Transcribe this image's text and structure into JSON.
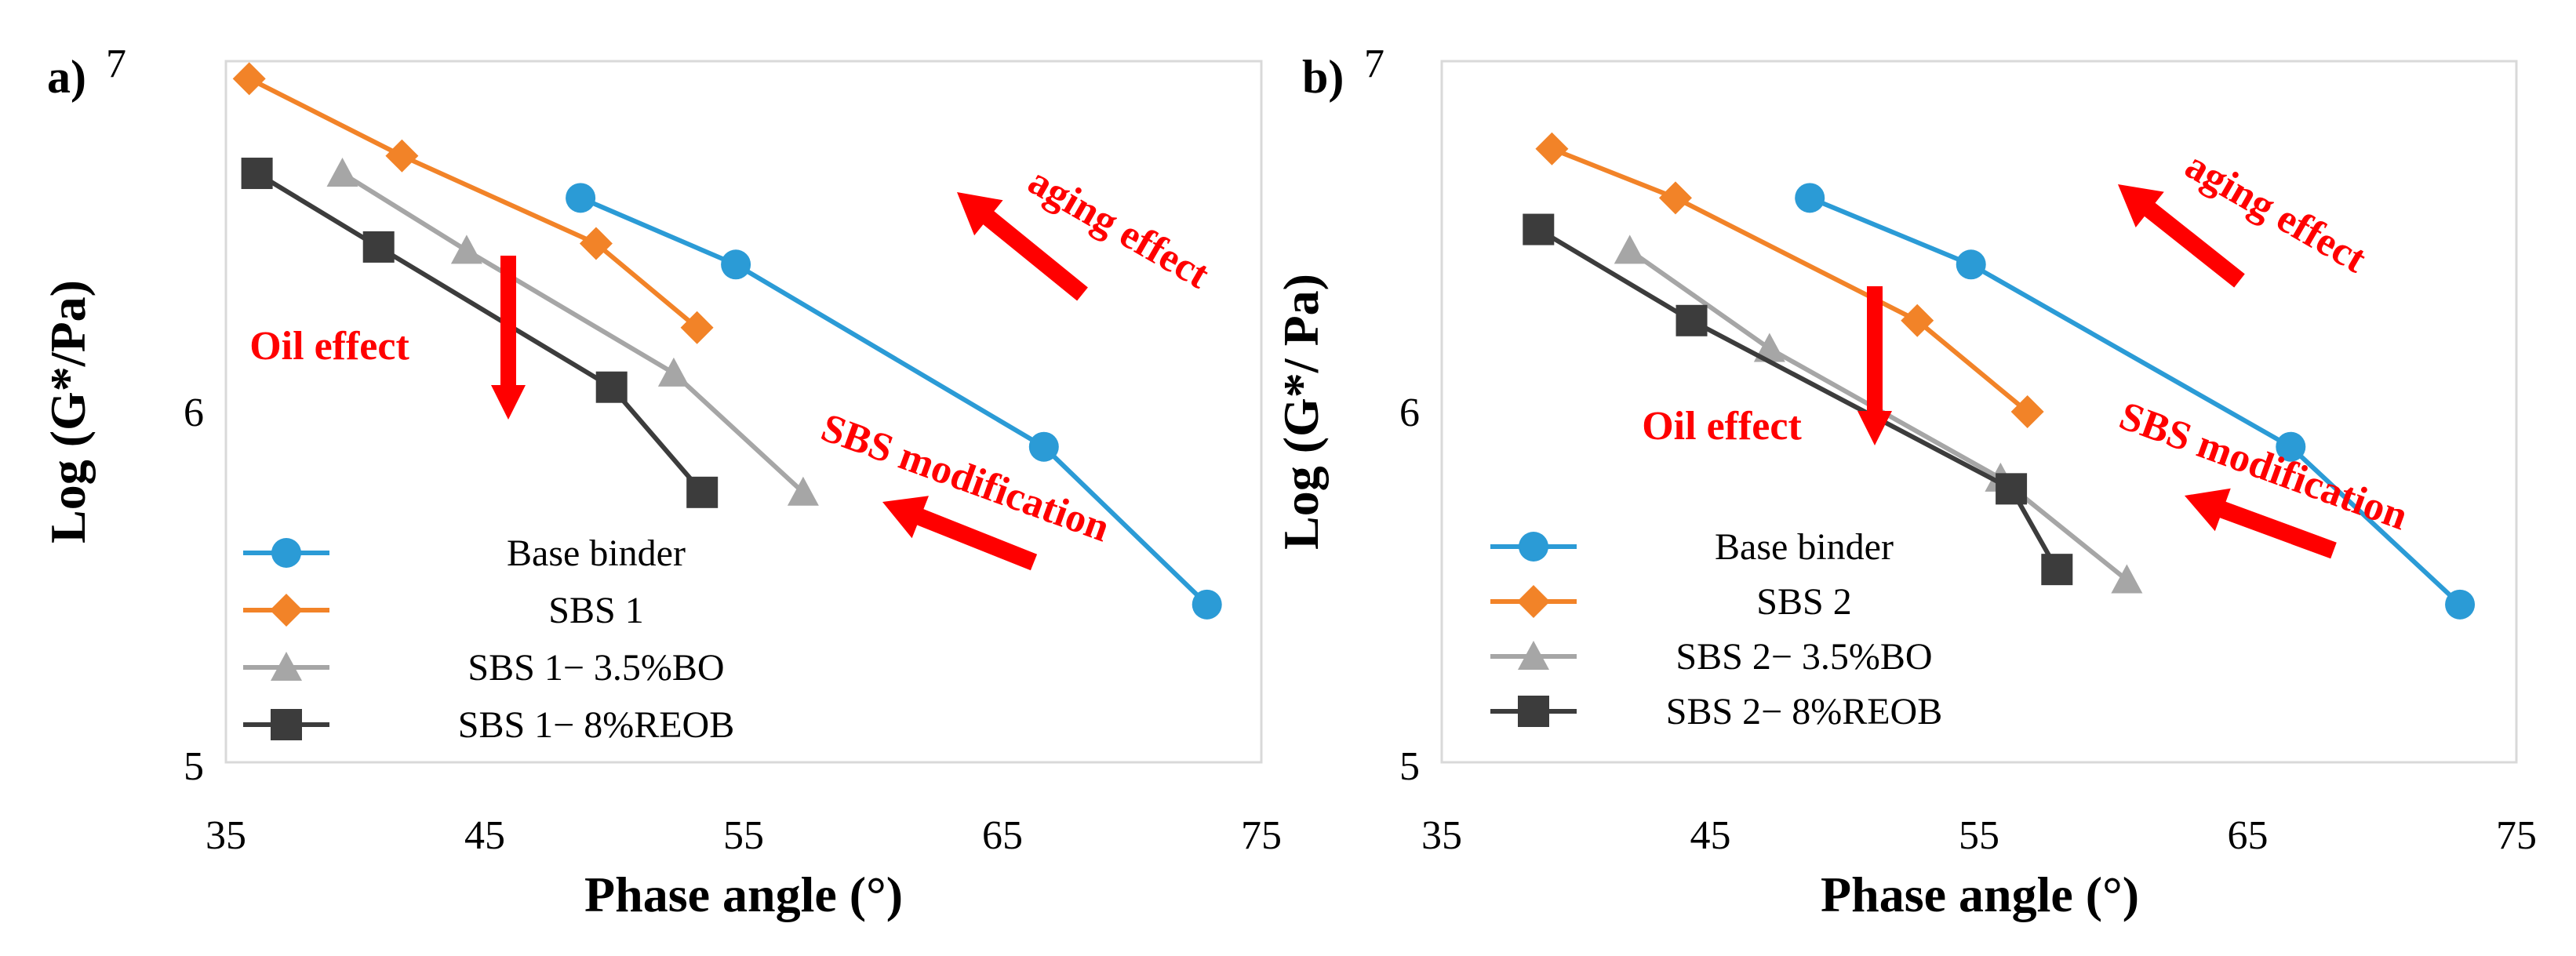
{
  "chart_data": [
    {
      "type": "line",
      "panel_label": "a)",
      "xlabel": "Phase angle (°)",
      "ylabel": "Log (G*/Pa)",
      "xlim": [
        35,
        75
      ],
      "ylim": [
        5,
        7
      ],
      "xticks": [
        "35",
        "45",
        "55",
        "65",
        "75"
      ],
      "yticks": [
        "5",
        "6",
        "7"
      ],
      "grid": false,
      "legend_position": "bottom-left",
      "series": [
        {
          "name": "Base binder",
          "color": "#2B9BD6",
          "marker": "circle",
          "x": [
            48.7,
            54.7,
            66.6,
            72.9
          ],
          "y": [
            6.61,
            6.42,
            5.9,
            5.45
          ]
        },
        {
          "name": "SBS 1",
          "color": "#F28328",
          "marker": "diamond",
          "x": [
            35.9,
            41.8,
            49.3,
            53.2
          ],
          "y": [
            6.95,
            6.73,
            6.48,
            6.24
          ]
        },
        {
          "name": "SBS 1− 3.5%BO",
          "color": "#A6A6A6",
          "marker": "triangle",
          "x": [
            39.5,
            44.3,
            52.3,
            57.3
          ],
          "y": [
            6.68,
            6.46,
            6.11,
            5.77
          ]
        },
        {
          "name": "SBS 1− 8%REOB",
          "color": "#3C3C3C",
          "marker": "square",
          "x": [
            36.2,
            40.9,
            49.9,
            53.4
          ],
          "y": [
            6.68,
            6.47,
            6.07,
            5.77
          ]
        }
      ],
      "annotations": [
        {
          "text": "aging effect",
          "direction": "up-left"
        },
        {
          "text": "Oil effect",
          "direction": "down"
        },
        {
          "text": "SBS modification",
          "direction": "left"
        }
      ]
    },
    {
      "type": "line",
      "panel_label": "b)",
      "xlabel": "Phase angle (°)",
      "ylabel": "Log (G*/ Pa)",
      "xlim": [
        35,
        75
      ],
      "ylim": [
        5,
        7
      ],
      "xticks": [
        "35",
        "45",
        "55",
        "65",
        "75"
      ],
      "yticks": [
        "5",
        "6",
        "7"
      ],
      "grid": false,
      "legend_position": "bottom-left",
      "series": [
        {
          "name": "Base binder",
          "color": "#2B9BD6",
          "marker": "circle",
          "x": [
            48.7,
            54.7,
            66.6,
            72.9
          ],
          "y": [
            6.61,
            6.42,
            5.9,
            5.45
          ]
        },
        {
          "name": "SBS 2",
          "color": "#F28328",
          "marker": "diamond",
          "x": [
            39.1,
            43.7,
            52.7,
            56.8
          ],
          "y": [
            6.75,
            6.61,
            6.26,
            6.0
          ]
        },
        {
          "name": "SBS 2− 3.5%BO",
          "color": "#A6A6A6",
          "marker": "triangle",
          "x": [
            42.0,
            47.2,
            55.8,
            60.5
          ],
          "y": [
            6.46,
            6.18,
            5.81,
            5.52
          ]
        },
        {
          "name": "SBS 2− 8%REOB",
          "color": "#3C3C3C",
          "marker": "square",
          "x": [
            38.6,
            44.3,
            56.2,
            57.9
          ],
          "y": [
            6.52,
            6.26,
            5.78,
            5.55
          ]
        }
      ],
      "annotations": [
        {
          "text": "aging effect",
          "direction": "up-left"
        },
        {
          "text": "Oil effect",
          "direction": "down"
        },
        {
          "text": "SBS modification",
          "direction": "left"
        }
      ]
    }
  ]
}
